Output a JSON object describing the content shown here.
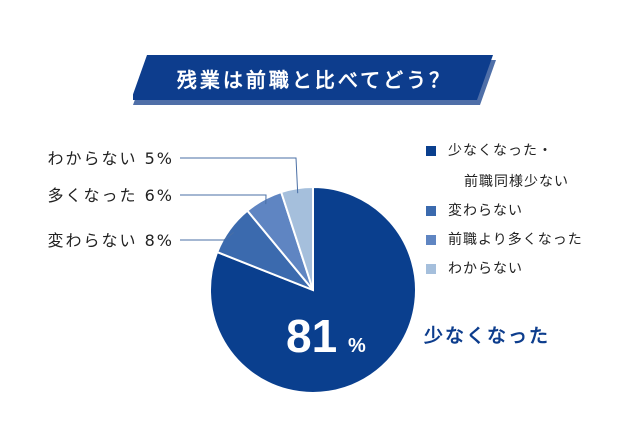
{
  "title": "残業は前職と比べてどう？",
  "colors": {
    "banner": "#0d3d8d",
    "banner_shadow": "#4f6fa8",
    "line": "#4a6fa5",
    "label_text": "#222222",
    "big_label": "#0d3d8d"
  },
  "legend": [
    {
      "line1": "少なくなった・",
      "line2": "前職同様少ない",
      "color": "#0a3f8e"
    },
    {
      "line1": "変わらない",
      "line2": "",
      "color": "#3b6aae"
    },
    {
      "line1": "前職より多くなった",
      "line2": "",
      "color": "#5f85c2"
    },
    {
      "line1": "わからない",
      "line2": "",
      "color": "#a5bfdc"
    }
  ],
  "chart_data": {
    "type": "pie",
    "slices": [
      {
        "label": "少なくなった",
        "value": 81,
        "color": "#0a3f8e"
      },
      {
        "label": "変わらない",
        "value": 8,
        "color": "#3b6aae"
      },
      {
        "label": "多くなった",
        "value": 6,
        "color": "#5f85c2"
      },
      {
        "label": "わからない",
        "value": 5,
        "color": "#a5bfdc"
      }
    ],
    "big_value": "81",
    "big_unit": "%",
    "big_label": "少なくなった",
    "callouts": [
      {
        "text": "わからない 5%"
      },
      {
        "text": "多くなった 6%"
      },
      {
        "text": "変わらない 8%"
      }
    ]
  }
}
